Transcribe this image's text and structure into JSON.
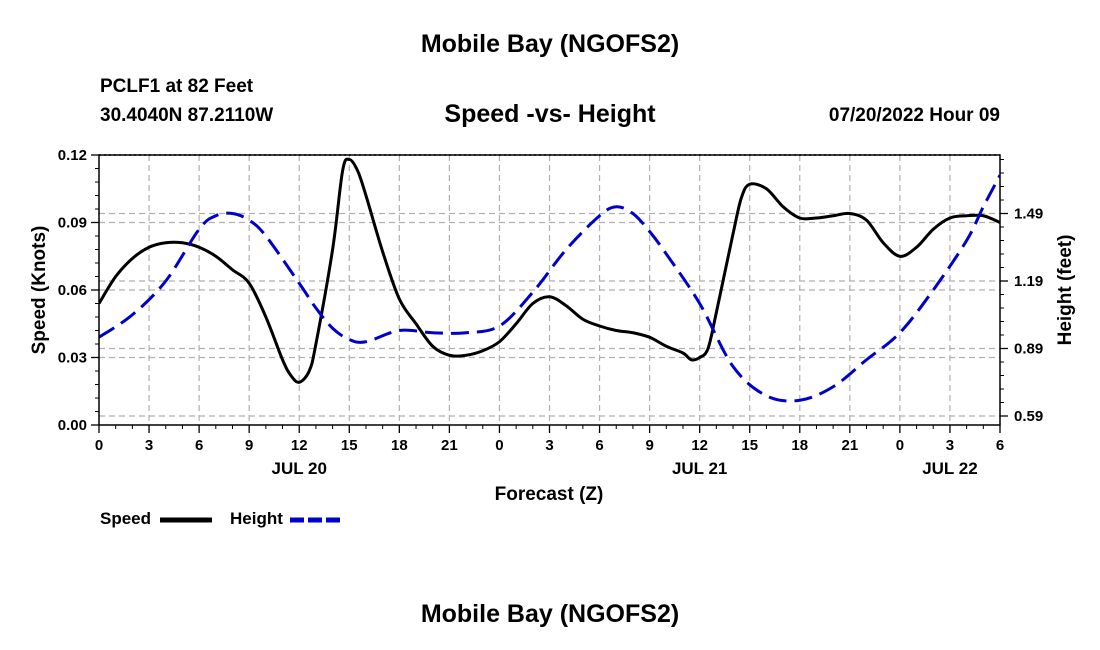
{
  "header": {
    "title": "Mobile Bay (NGOFS2)",
    "station": "PCLF1 at 82 Feet",
    "coords": "30.4040N  87.2110W",
    "subtitle": "Speed -vs- Height",
    "datetime": "07/20/2022 Hour 09"
  },
  "footer": {
    "title": "Mobile Bay (NGOFS2)"
  },
  "colors": {
    "speed": "#000000",
    "height": "#0000cc",
    "grid": "#b0b0b0"
  },
  "chart_data": {
    "type": "line",
    "title": "Speed -vs- Height",
    "xlabel": "Forecast (Z)",
    "ylabel": "Speed (Knots)",
    "y2label": "Height (feet)",
    "x_range": [
      0,
      54
    ],
    "x_ticks": [
      0,
      3,
      6,
      9,
      12,
      15,
      18,
      21,
      24,
      27,
      30,
      33,
      36,
      39,
      42,
      45,
      48,
      51,
      54
    ],
    "x_tick_labels": [
      "0",
      "3",
      "6",
      "9",
      "12",
      "15",
      "18",
      "21",
      "0",
      "3",
      "6",
      "9",
      "12",
      "15",
      "18",
      "21",
      "0",
      "3",
      "6"
    ],
    "date_labels": [
      {
        "x": 12,
        "label": "JUL 20"
      },
      {
        "x": 36,
        "label": "JUL 21"
      },
      {
        "x": 51,
        "label": "JUL 22"
      }
    ],
    "ylim": [
      0,
      0.12
    ],
    "y_ticks": [
      0.0,
      0.03,
      0.06,
      0.09,
      0.12
    ],
    "y_tick_labels": [
      "0.00",
      "0.03",
      "0.06",
      "0.09",
      "0.12"
    ],
    "y2lim": [
      0.55,
      1.75
    ],
    "y2_ticks": [
      0.59,
      0.89,
      1.19,
      1.49
    ],
    "y2_tick_labels": [
      "0.59",
      "0.89",
      "1.19",
      "1.49"
    ],
    "legend": [
      {
        "name": "Speed",
        "style": "solid"
      },
      {
        "name": "Height",
        "style": "dashed"
      }
    ],
    "series": [
      {
        "name": "Speed",
        "axis": "left",
        "x": [
          0,
          1,
          2,
          3,
          4,
          5,
          6,
          7,
          8,
          9,
          10,
          11,
          11.5,
          12,
          12.6,
          13,
          14,
          14.6,
          15,
          15.5,
          16,
          17,
          18,
          19,
          20,
          21,
          22,
          23,
          24,
          25,
          26,
          27,
          28,
          29,
          30,
          31,
          32,
          33,
          34,
          35,
          35.5,
          36,
          36.5,
          37,
          38,
          38.5,
          39,
          40,
          41,
          42,
          43,
          44,
          45,
          46,
          47,
          48,
          49,
          50,
          51,
          52,
          53,
          54
        ],
        "values": [
          0.054,
          0.066,
          0.074,
          0.079,
          0.081,
          0.081,
          0.079,
          0.075,
          0.069,
          0.063,
          0.048,
          0.029,
          0.022,
          0.019,
          0.024,
          0.036,
          0.078,
          0.113,
          0.118,
          0.113,
          0.102,
          0.077,
          0.056,
          0.045,
          0.035,
          0.031,
          0.031,
          0.033,
          0.037,
          0.045,
          0.054,
          0.057,
          0.053,
          0.047,
          0.044,
          0.042,
          0.041,
          0.039,
          0.035,
          0.032,
          0.029,
          0.03,
          0.034,
          0.05,
          0.085,
          0.101,
          0.107,
          0.105,
          0.097,
          0.092,
          0.092,
          0.093,
          0.094,
          0.091,
          0.081,
          0.075,
          0.079,
          0.087,
          0.092,
          0.093,
          0.093,
          0.09
        ]
      },
      {
        "name": "Height",
        "axis": "right",
        "x": [
          0,
          2,
          4,
          6,
          7,
          8,
          9,
          10,
          12,
          13,
          14,
          15,
          16,
          18,
          20,
          22,
          24,
          26,
          28,
          30,
          31,
          32,
          33,
          34,
          36,
          38,
          40,
          42,
          44,
          46,
          48,
          50,
          52,
          53,
          54
        ],
        "values": [
          0.94,
          1.04,
          1.19,
          1.42,
          1.48,
          1.49,
          1.46,
          1.39,
          1.18,
          1.07,
          0.98,
          0.93,
          0.92,
          0.97,
          0.96,
          0.96,
          0.99,
          1.14,
          1.33,
          1.48,
          1.52,
          1.49,
          1.41,
          1.31,
          1.09,
          0.81,
          0.68,
          0.66,
          0.72,
          0.84,
          0.96,
          1.15,
          1.37,
          1.52,
          1.66
        ]
      }
    ]
  }
}
